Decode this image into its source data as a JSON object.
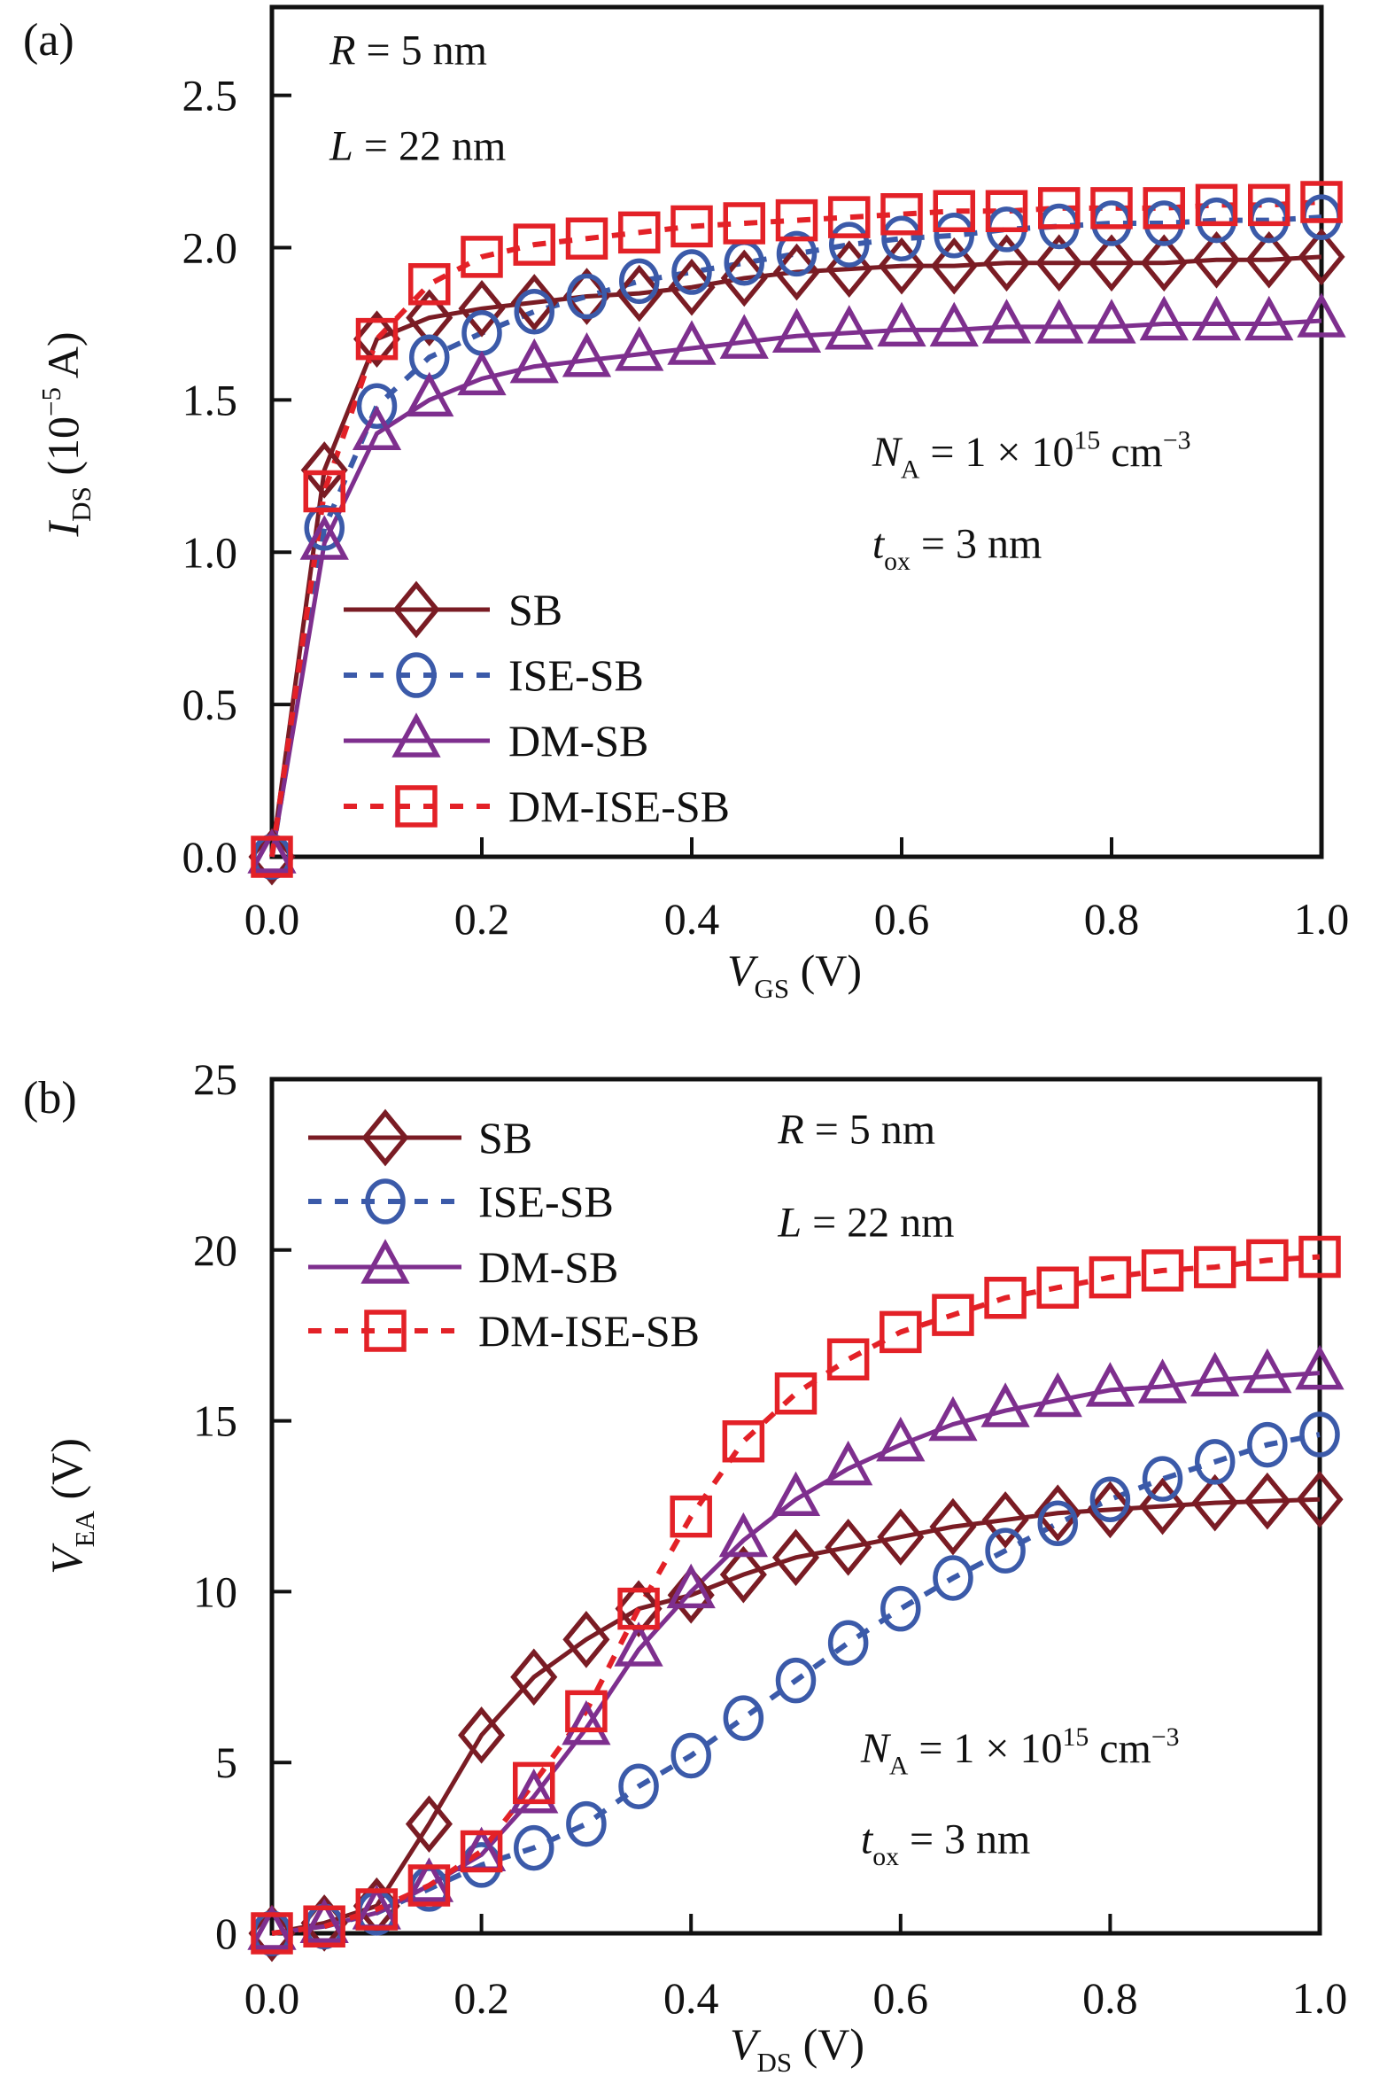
{
  "style": {
    "background": "#ffffff",
    "text_color": "#111111",
    "frame_color": "#111111"
  },
  "chart_data": [
    {
      "id": "a",
      "type": "line",
      "panel_label": "(a)",
      "xlabel": "V_GS (V)",
      "ylabel": "I_DS (10^-5 A)",
      "xlabel_tokens": [
        {
          "t": "V",
          "i": true
        },
        {
          "t": "GS",
          "pos": "sub"
        },
        {
          "t": " (V)"
        }
      ],
      "ylabel_tokens": [
        {
          "t": "I",
          "i": true
        },
        {
          "t": "DS",
          "pos": "sub"
        },
        {
          "t": " (10"
        },
        {
          "t": "−5",
          "pos": "sup"
        },
        {
          "t": " A)"
        }
      ],
      "xlim": [
        0,
        1.0
      ],
      "ylim": [
        0,
        2.79
      ],
      "grid": false,
      "legend_position": "inside-left-lower",
      "x_ticks": [
        {
          "v": 0,
          "label": "0.0"
        },
        {
          "v": 0.2,
          "label": "0.2"
        },
        {
          "v": 0.4,
          "label": "0.4"
        },
        {
          "v": 0.6,
          "label": "0.6"
        },
        {
          "v": 0.8,
          "label": "0.8"
        },
        {
          "v": 1.0,
          "label": "1.0"
        }
      ],
      "y_ticks": [
        {
          "v": 0,
          "label": "0.0"
        },
        {
          "v": 0.5,
          "label": "0.5"
        },
        {
          "v": 1.0,
          "label": "1.0"
        },
        {
          "v": 1.5,
          "label": "1.5"
        },
        {
          "v": 2.0,
          "label": "2.0"
        },
        {
          "v": 2.5,
          "label": "2.5"
        }
      ],
      "x": [
        0,
        0.05,
        0.1,
        0.15,
        0.2,
        0.25,
        0.3,
        0.35,
        0.4,
        0.45,
        0.5,
        0.55,
        0.6,
        0.65,
        0.7,
        0.75,
        0.8,
        0.85,
        0.9,
        0.95,
        1.0
      ],
      "series": [
        {
          "name": "SB",
          "color": "#7a1c24",
          "line": "solid",
          "marker": "diamond",
          "values": [
            0,
            1.27,
            1.7,
            1.77,
            1.8,
            1.82,
            1.84,
            1.85,
            1.87,
            1.9,
            1.92,
            1.93,
            1.94,
            1.94,
            1.95,
            1.95,
            1.95,
            1.95,
            1.96,
            1.96,
            1.97
          ]
        },
        {
          "name": "ISE-SB",
          "color": "#3b5aa9",
          "line": "dotted",
          "marker": "circle",
          "values": [
            0,
            1.08,
            1.48,
            1.64,
            1.72,
            1.79,
            1.84,
            1.89,
            1.92,
            1.95,
            1.98,
            2.01,
            2.03,
            2.04,
            2.06,
            2.07,
            2.08,
            2.08,
            2.09,
            2.09,
            2.1
          ]
        },
        {
          "name": "DM-SB",
          "color": "#7e2f8e",
          "line": "solid",
          "marker": "triangle",
          "values": [
            0,
            1.03,
            1.39,
            1.5,
            1.57,
            1.61,
            1.63,
            1.65,
            1.67,
            1.69,
            1.71,
            1.72,
            1.73,
            1.73,
            1.74,
            1.74,
            1.74,
            1.75,
            1.75,
            1.75,
            1.76
          ]
        },
        {
          "name": "DM-ISE-SB",
          "color": "#e32127",
          "line": "dotted",
          "marker": "square",
          "values": [
            0,
            1.2,
            1.7,
            1.88,
            1.97,
            2.01,
            2.03,
            2.05,
            2.07,
            2.08,
            2.09,
            2.1,
            2.11,
            2.12,
            2.12,
            2.13,
            2.13,
            2.13,
            2.14,
            2.14,
            2.15
          ]
        }
      ],
      "annotations": [
        {
          "text": "R = 5 nm",
          "tokens": [
            {
              "t": "R",
              "i": true
            },
            {
              "t": " = 5 nm"
            }
          ],
          "fx": 0.055,
          "fy": 0.067
        },
        {
          "text": "L = 22 nm",
          "tokens": [
            {
              "t": "L",
              "i": true
            },
            {
              "t": " = 22 nm"
            }
          ],
          "fx": 0.055,
          "fy": 0.18
        },
        {
          "text": "N_A = 1 × 10^15 cm^−3",
          "tokens": [
            {
              "t": "N",
              "i": true
            },
            {
              "t": "A",
              "pos": "sub"
            },
            {
              "t": " =  1 × 10"
            },
            {
              "t": "15",
              "pos": "sup"
            },
            {
              "t": " cm"
            },
            {
              "t": "−3",
              "pos": "sup"
            }
          ],
          "fx": 0.572,
          "fy": 0.54
        },
        {
          "text": "t_ox = 3 nm",
          "tokens": [
            {
              "t": "t",
              "i": true
            },
            {
              "t": "ox",
              "pos": "sub"
            },
            {
              "t": " = 3 nm"
            }
          ],
          "fx": 0.572,
          "fy": 0.648
        }
      ]
    },
    {
      "id": "b",
      "type": "line",
      "panel_label": "(b)",
      "xlabel": "V_DS (V)",
      "ylabel": "V_EA (V)",
      "xlabel_tokens": [
        {
          "t": "V",
          "i": true
        },
        {
          "t": "DS",
          "pos": "sub"
        },
        {
          "t": " (V)"
        }
      ],
      "ylabel_tokens": [
        {
          "t": "V",
          "i": true
        },
        {
          "t": "EA",
          "pos": "sub"
        },
        {
          "t": " (V)"
        }
      ],
      "xlim": [
        0,
        1.0
      ],
      "ylim": [
        0,
        25
      ],
      "grid": false,
      "legend_position": "inside-left-upper",
      "x_ticks": [
        {
          "v": 0,
          "label": "0.0"
        },
        {
          "v": 0.2,
          "label": "0.2"
        },
        {
          "v": 0.4,
          "label": "0.4"
        },
        {
          "v": 0.6,
          "label": "0.6"
        },
        {
          "v": 0.8,
          "label": "0.8"
        },
        {
          "v": 1.0,
          "label": "1.0"
        }
      ],
      "y_ticks": [
        {
          "v": 0,
          "label": "0"
        },
        {
          "v": 5,
          "label": "5"
        },
        {
          "v": 10,
          "label": "10"
        },
        {
          "v": 15,
          "label": "15"
        },
        {
          "v": 20,
          "label": "20"
        },
        {
          "v": 25,
          "label": "25"
        }
      ],
      "x": [
        0,
        0.05,
        0.1,
        0.15,
        0.2,
        0.25,
        0.3,
        0.35,
        0.4,
        0.45,
        0.5,
        0.55,
        0.6,
        0.65,
        0.7,
        0.75,
        0.8,
        0.85,
        0.9,
        0.95,
        1.0
      ],
      "series": [
        {
          "name": "SB",
          "color": "#7a1c24",
          "line": "solid",
          "marker": "diamond",
          "values": [
            0,
            0.3,
            0.8,
            3.2,
            5.8,
            7.5,
            8.6,
            9.5,
            9.9,
            10.5,
            11.0,
            11.3,
            11.6,
            11.9,
            12.1,
            12.3,
            12.4,
            12.5,
            12.6,
            12.65,
            12.7
          ]
        },
        {
          "name": "ISE-SB",
          "color": "#3b5aa9",
          "line": "dotted",
          "marker": "circle",
          "values": [
            0,
            0.2,
            0.6,
            1.3,
            2.0,
            2.5,
            3.2,
            4.3,
            5.2,
            6.3,
            7.4,
            8.5,
            9.5,
            10.4,
            11.2,
            12.0,
            12.7,
            13.3,
            13.8,
            14.3,
            14.6
          ]
        },
        {
          "name": "DM-SB",
          "color": "#7e2f8e",
          "line": "solid",
          "marker": "triangle",
          "values": [
            0,
            0.2,
            0.6,
            1.4,
            2.3,
            4.0,
            6.0,
            8.3,
            10.0,
            11.5,
            12.7,
            13.6,
            14.3,
            14.9,
            15.3,
            15.6,
            15.9,
            16.0,
            16.2,
            16.3,
            16.4
          ]
        },
        {
          "name": "DM-ISE-SB",
          "color": "#e32127",
          "line": "dotted",
          "marker": "square",
          "values": [
            0,
            0.2,
            0.7,
            1.4,
            2.4,
            4.4,
            6.5,
            9.5,
            12.2,
            14.4,
            15.8,
            16.8,
            17.6,
            18.1,
            18.6,
            18.9,
            19.2,
            19.4,
            19.5,
            19.7,
            19.8
          ]
        }
      ],
      "annotations": [
        {
          "text": "R = 5 nm",
          "tokens": [
            {
              "t": "R",
              "i": true
            },
            {
              "t": " = 5 nm"
            }
          ],
          "fx": 0.483,
          "fy": 0.075
        },
        {
          "text": "L = 22 nm",
          "tokens": [
            {
              "t": "L",
              "i": true
            },
            {
              "t": " = 22 nm"
            }
          ],
          "fx": 0.483,
          "fy": 0.184
        },
        {
          "text": "N_A = 1 × 10^15 cm^−3",
          "tokens": [
            {
              "t": "N",
              "i": true
            },
            {
              "t": "A",
              "pos": "sub"
            },
            {
              "t": " =  1 × 10"
            },
            {
              "t": "15",
              "pos": "sup"
            },
            {
              "t": " cm"
            },
            {
              "t": "−3",
              "pos": "sup"
            }
          ],
          "fx": 0.562,
          "fy": 0.8
        },
        {
          "text": "t_ox = 3 nm",
          "tokens": [
            {
              "t": "t",
              "i": true
            },
            {
              "t": "ox",
              "pos": "sub"
            },
            {
              "t": " = 3 nm"
            }
          ],
          "fx": 0.562,
          "fy": 0.906
        }
      ]
    }
  ]
}
